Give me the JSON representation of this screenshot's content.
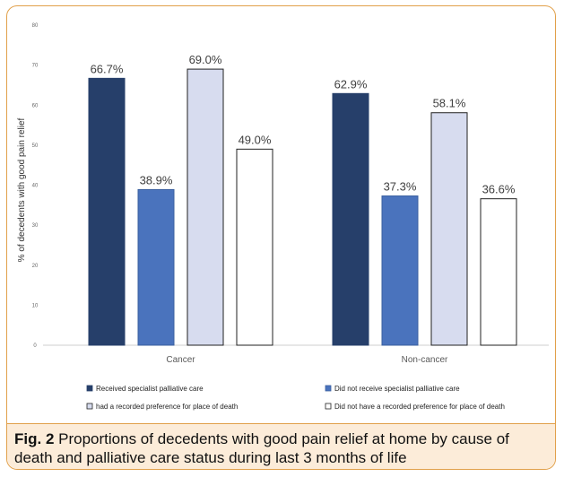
{
  "chart_data": {
    "type": "bar",
    "categories": [
      "Cancer",
      "Non-cancer"
    ],
    "series": [
      {
        "name": "Received specialist palliative care",
        "values": [
          66.7,
          62.9
        ],
        "labels": [
          "66.7%",
          "62.9%"
        ],
        "color": "#263f6a",
        "stroke": "#263f6a"
      },
      {
        "name": "Did not receive specialist palliative care",
        "values": [
          38.9,
          37.3
        ],
        "labels": [
          "38.9%",
          "37.3%"
        ],
        "color": "#4a73bd",
        "stroke": "#3a5f9f"
      },
      {
        "name": "had a recorded preference for place of death",
        "values": [
          69.0,
          58.1
        ],
        "labels": [
          "69.0%",
          "58.1%"
        ],
        "color": "#d7dcef",
        "stroke": "#222222"
      },
      {
        "name": "Did not have a recorded preference for place of death",
        "values": [
          49.0,
          36.6
        ],
        "labels": [
          "49.0%",
          "36.6%"
        ],
        "color": "#ffffff",
        "stroke": "#222222"
      }
    ],
    "ylabel": "% of decedents with good pain relief",
    "ylim": [
      0,
      80
    ],
    "yticks": [
      "0",
      "10",
      "20",
      "30",
      "40",
      "50",
      "60",
      "70",
      "80"
    ],
    "grid": false,
    "legend_position": "bottom"
  },
  "caption": {
    "label": "Fig. 2",
    "text": " Proportions of decedents with good pain relief at home by cause of death and palliative care status during last 3 months of life"
  }
}
